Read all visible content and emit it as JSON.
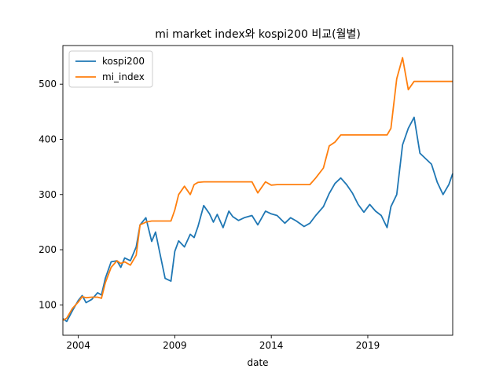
{
  "chart_data": {
    "type": "line",
    "title": "mi market index와 kospi200 비교(월별)",
    "xlabel": "date",
    "ylabel": "",
    "xlim": [
      2003.2,
      2023.4
    ],
    "ylim": [
      45,
      570
    ],
    "x_ticks": [
      2004,
      2009,
      2014,
      2019
    ],
    "x_tick_labels": [
      "2004",
      "2009",
      "2014",
      "2019"
    ],
    "y_ticks": [
      100,
      200,
      300,
      400,
      500
    ],
    "y_tick_labels": [
      "100",
      "200",
      "300",
      "400",
      "500"
    ],
    "grid": false,
    "legend_position": "top-left",
    "series": [
      {
        "name": "kospi200",
        "color": "#1f77b4",
        "x": [
          2003.2,
          2003.4,
          2003.7,
          2004.0,
          2004.2,
          2004.4,
          2004.7,
          2005.0,
          2005.2,
          2005.4,
          2005.7,
          2006.0,
          2006.2,
          2006.4,
          2006.7,
          2007.0,
          2007.2,
          2007.5,
          2007.8,
          2008.0,
          2008.2,
          2008.5,
          2008.8,
          2009.0,
          2009.2,
          2009.5,
          2009.8,
          2010.0,
          2010.2,
          2010.5,
          2010.8,
          2011.0,
          2011.2,
          2011.5,
          2011.8,
          2012.0,
          2012.3,
          2012.6,
          2013.0,
          2013.3,
          2013.7,
          2014.0,
          2014.3,
          2014.7,
          2015.0,
          2015.3,
          2015.7,
          2016.0,
          2016.3,
          2016.7,
          2017.0,
          2017.3,
          2017.6,
          2017.9,
          2018.2,
          2018.5,
          2018.8,
          2019.1,
          2019.4,
          2019.7,
          2020.0,
          2020.2,
          2020.5,
          2020.8,
          2021.1,
          2021.4,
          2021.7,
          2022.0,
          2022.3,
          2022.6,
          2022.9,
          2023.2,
          2023.4
        ],
        "values": [
          75,
          70,
          90,
          108,
          117,
          104,
          110,
          122,
          118,
          148,
          178,
          180,
          168,
          185,
          180,
          205,
          245,
          258,
          215,
          232,
          198,
          148,
          143,
          197,
          216,
          205,
          228,
          222,
          242,
          280,
          265,
          250,
          264,
          240,
          270,
          260,
          253,
          258,
          262,
          245,
          270,
          265,
          262,
          248,
          258,
          252,
          242,
          248,
          262,
          278,
          302,
          320,
          330,
          318,
          303,
          282,
          268,
          282,
          270,
          262,
          240,
          278,
          300,
          390,
          420,
          440,
          375,
          365,
          355,
          322,
          300,
          318,
          338
        ]
      },
      {
        "name": "mi_index",
        "color": "#ff7f0e",
        "x": [
          2003.2,
          2003.4,
          2003.7,
          2004.0,
          2004.2,
          2004.4,
          2004.7,
          2005.0,
          2005.2,
          2005.4,
          2005.7,
          2006.0,
          2006.2,
          2006.4,
          2006.7,
          2007.0,
          2007.2,
          2007.5,
          2007.8,
          2008.0,
          2008.2,
          2008.5,
          2008.8,
          2009.0,
          2009.2,
          2009.5,
          2009.8,
          2010.0,
          2010.2,
          2010.5,
          2010.8,
          2011.0,
          2011.2,
          2011.5,
          2011.8,
          2012.0,
          2012.3,
          2012.6,
          2013.0,
          2013.3,
          2013.7,
          2014.0,
          2014.3,
          2014.7,
          2015.0,
          2015.3,
          2015.7,
          2016.0,
          2016.3,
          2016.7,
          2017.0,
          2017.3,
          2017.6,
          2017.9,
          2018.2,
          2018.5,
          2018.8,
          2019.1,
          2019.4,
          2019.7,
          2020.0,
          2020.2,
          2020.5,
          2020.8,
          2021.1,
          2021.4,
          2021.7,
          2022.0,
          2022.3,
          2022.6,
          2022.9,
          2023.2,
          2023.4
        ],
        "values": [
          72,
          76,
          94,
          105,
          115,
          113,
          114,
          114,
          112,
          140,
          168,
          180,
          175,
          178,
          172,
          190,
          245,
          250,
          252,
          252,
          252,
          252,
          252,
          272,
          300,
          315,
          300,
          318,
          322,
          323,
          323,
          323,
          323,
          323,
          323,
          323,
          323,
          323,
          323,
          303,
          323,
          317,
          318,
          318,
          318,
          318,
          318,
          318,
          330,
          348,
          388,
          395,
          408,
          408,
          408,
          408,
          408,
          408,
          408,
          408,
          408,
          420,
          510,
          548,
          490,
          505,
          505,
          505,
          505,
          505,
          505,
          505,
          505
        ]
      }
    ]
  }
}
